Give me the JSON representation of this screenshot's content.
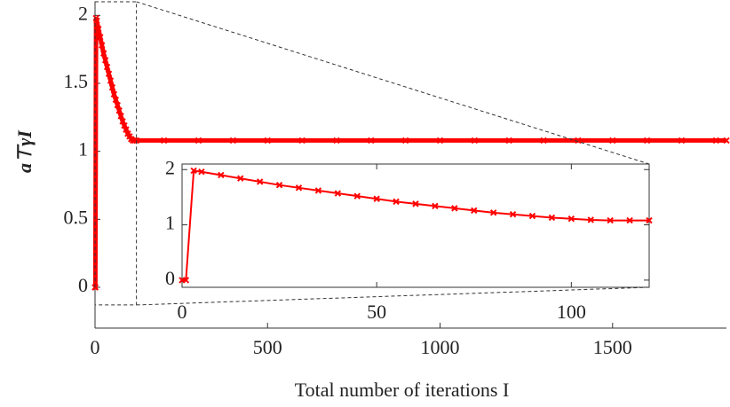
{
  "chart_data": [
    {
      "type": "line",
      "xlabel": "Total number of iterations I",
      "ylabel": "a⊤γI",
      "x": [
        0,
        1,
        3,
        5,
        10,
        15,
        20,
        25,
        30,
        35,
        40,
        45,
        50,
        55,
        60,
        65,
        70,
        75,
        80,
        85,
        90,
        95,
        100,
        105,
        110,
        115,
        120,
        200,
        300,
        400,
        500,
        600,
        700,
        800,
        900,
        1000,
        1100,
        1200,
        1300,
        1400,
        1500,
        1600,
        1700,
        1800,
        1830
      ],
      "series": [
        {
          "color": "#ff0000",
          "values": [
            0,
            0,
            1.98,
            1.96,
            1.9,
            1.84,
            1.78,
            1.72,
            1.67,
            1.62,
            1.57,
            1.52,
            1.47,
            1.42,
            1.38,
            1.34,
            1.3,
            1.26,
            1.22,
            1.19,
            1.16,
            1.13,
            1.11,
            1.09,
            1.08,
            1.08,
            1.08,
            1.08,
            1.08,
            1.08,
            1.08,
            1.08,
            1.08,
            1.08,
            1.08,
            1.08,
            1.08,
            1.08,
            1.08,
            1.08,
            1.08,
            1.08,
            1.08,
            1.08,
            1.08
          ]
        }
      ],
      "xlim": [
        0,
        1830
      ],
      "ylim": [
        -0.3,
        2.1
      ],
      "xticks": [
        0,
        500,
        1000,
        1500
      ],
      "yticks": [
        0,
        0.5,
        1,
        1.5,
        2
      ],
      "box": false
    },
    {
      "type": "line",
      "x": [
        0,
        1,
        3,
        5,
        10,
        15,
        20,
        25,
        30,
        35,
        40,
        45,
        50,
        55,
        60,
        65,
        70,
        75,
        80,
        85,
        90,
        95,
        100,
        105,
        110,
        115,
        120
      ],
      "series": [
        {
          "color": "#ff0000",
          "values": [
            0,
            0,
            1.98,
            1.96,
            1.9,
            1.84,
            1.78,
            1.72,
            1.67,
            1.62,
            1.57,
            1.52,
            1.47,
            1.42,
            1.38,
            1.34,
            1.3,
            1.26,
            1.22,
            1.19,
            1.16,
            1.13,
            1.11,
            1.09,
            1.08,
            1.08,
            1.08
          ]
        }
      ],
      "xlim": [
        0,
        120
      ],
      "ylim": [
        -0.13,
        2.1
      ],
      "xticks": [
        0,
        50,
        100
      ],
      "yticks": [
        0,
        1,
        2
      ],
      "box": true
    }
  ]
}
